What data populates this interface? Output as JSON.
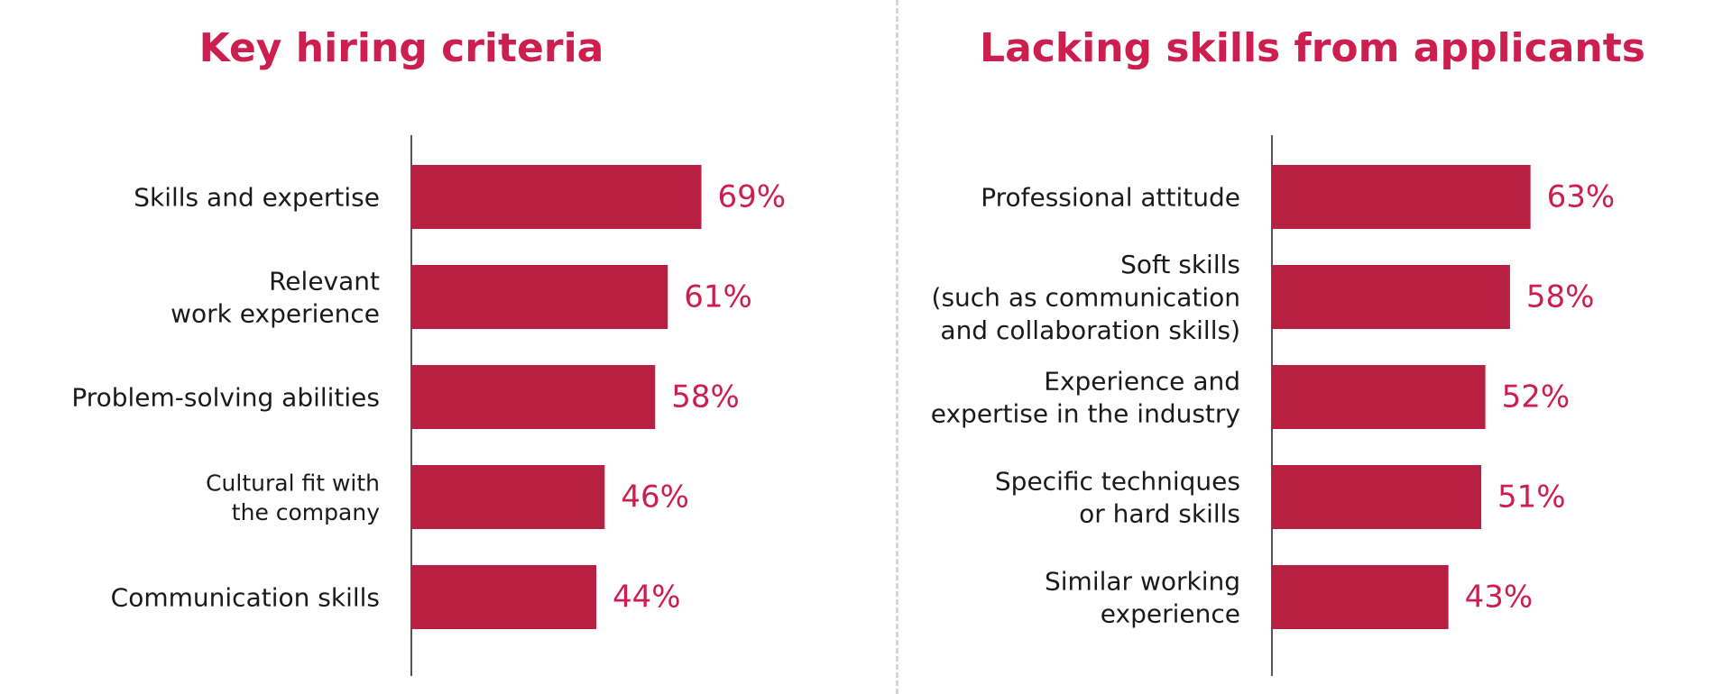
{
  "chart_data": [
    {
      "type": "bar",
      "orientation": "horizontal",
      "title": "Key hiring criteria",
      "categories": [
        "Skills and expertise",
        "Relevant\nwork experience",
        "Problem-solving abilities",
        "Cultural fit with\nthe company",
        "Communication skills"
      ],
      "values": [
        69,
        61,
        58,
        46,
        44
      ],
      "value_labels": [
        "69%",
        "61%",
        "58%",
        "46%",
        "44%"
      ],
      "unit": "%",
      "xlim": [
        0,
        100
      ],
      "grid": false,
      "legend": "none",
      "bar_color": "#b82042",
      "title_color": "#cc1f4f",
      "value_label_color": "#cc1f4f"
    },
    {
      "type": "bar",
      "orientation": "horizontal",
      "title": "Lacking skills from applicants",
      "categories": [
        "Professional attitude",
        "Soft skills\n(such as communication\nand collaboration skills)",
        "Experience and\nexpertise in the industry",
        "Specific techniques\nor hard skills",
        "Similar working\nexperience"
      ],
      "values": [
        63,
        58,
        52,
        51,
        43
      ],
      "value_labels": [
        "63%",
        "58%",
        "52%",
        "51%",
        "43%"
      ],
      "unit": "%",
      "xlim": [
        0,
        100
      ],
      "grid": false,
      "legend": "none",
      "bar_color": "#b82042",
      "title_color": "#cc1f4f",
      "value_label_color": "#cc1f4f"
    }
  ]
}
